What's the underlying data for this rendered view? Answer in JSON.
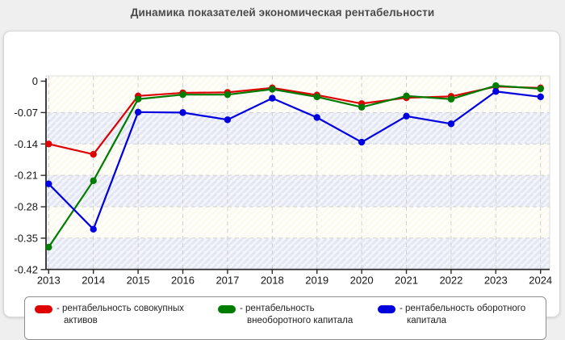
{
  "title": "Динамика показателей экономическая рентабельности",
  "chart_data": {
    "type": "line",
    "title": "Динамика показателей экономическая рентабельности",
    "x": [
      "2013",
      "2014",
      "2015",
      "2016",
      "2017",
      "2018",
      "2019",
      "2020",
      "2021",
      "2022",
      "2023",
      "2024"
    ],
    "series": [
      {
        "name": "рентабельность совокупных активов",
        "color": "#df0000",
        "values": [
          -0.14,
          -0.163,
          -0.033,
          -0.026,
          -0.025,
          -0.015,
          -0.031,
          -0.05,
          -0.037,
          -0.034,
          -0.012,
          -0.015
        ]
      },
      {
        "name": "рентабельность внеоборотного капитала",
        "color": "#007d00",
        "values": [
          -0.37,
          -0.222,
          -0.04,
          -0.03,
          -0.03,
          -0.018,
          -0.035,
          -0.058,
          -0.033,
          -0.04,
          -0.01,
          -0.017
        ]
      },
      {
        "name": "рентабельность оборотного капитала",
        "color": "#0000df",
        "values": [
          -0.229,
          -0.33,
          -0.069,
          -0.07,
          -0.086,
          -0.038,
          -0.081,
          -0.136,
          -0.078,
          -0.095,
          -0.023,
          -0.035
        ]
      }
    ],
    "ylim": [
      -0.42,
      0
    ],
    "ytick_values": [
      0,
      -0.07,
      -0.14,
      -0.21,
      -0.28,
      -0.35,
      -0.42
    ],
    "ytick_labels": [
      "0",
      "-0.07",
      "-0.14",
      "-0.21",
      "-0.28",
      "-0.35",
      "-0.42"
    ],
    "xlabel": "",
    "ylabel": "",
    "grid": "dashed",
    "legend_position": "bottom",
    "plot_background": "diagonal-hatch with alternating ivory/bluish horizontal bands",
    "band_colors": {
      "ivory": "#fbfaed",
      "bluish": "#f3f5fb"
    }
  },
  "legend": {
    "items": [
      {
        "color": "#df0000",
        "line1": "- рентабельность совокупных",
        "line2": "активов"
      },
      {
        "color": "#007d00",
        "line1": "- рентабельность",
        "line2": "внеоборотного капитала"
      },
      {
        "color": "#0000df",
        "line1": "- рентабельность оборотного",
        "line2": "капитала"
      }
    ]
  }
}
